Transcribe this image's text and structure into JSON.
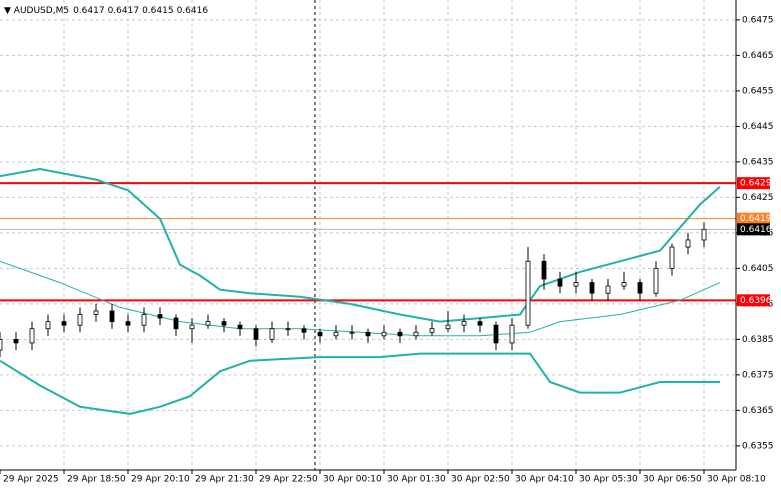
{
  "chart_data": {
    "type": "ohlc",
    "symbol": "AUDUSD,M5",
    "header_ohlc": [
      0.6417,
      0.6417,
      0.6415,
      0.6416
    ],
    "ylim": [
      0.63482,
      0.64806
    ],
    "yticks": [
      0.6355,
      0.6365,
      0.6375,
      0.6385,
      0.6395,
      0.6405,
      0.6415,
      0.6425,
      0.6435,
      0.6445,
      0.6455,
      0.6465,
      0.6475
    ],
    "xlim": [
      0,
      184
    ],
    "xticks": [
      {
        "value": 0,
        "label": "29 Apr 2025"
      },
      {
        "value": 16,
        "label": "29 Apr 18:50"
      },
      {
        "value": 32,
        "label": "29 Apr 20:10"
      },
      {
        "value": 48,
        "label": "29 Apr 21:30"
      },
      {
        "value": 64,
        "label": "29 Apr 22:50"
      },
      {
        "value": 80,
        "label": "30 Apr 00:10"
      },
      {
        "value": 96,
        "label": "30 Apr 01:30"
      },
      {
        "value": 112,
        "label": "30 Apr 02:50"
      },
      {
        "value": 128,
        "label": "30 Apr 04:10"
      },
      {
        "value": 144,
        "label": "30 Apr 05:30"
      },
      {
        "value": 160,
        "label": "30 Apr 06:50"
      },
      {
        "value": 176,
        "label": "30 Apr 08:10"
      }
    ],
    "grid": true,
    "bar_color": "#000000",
    "x": [
      0,
      4,
      8,
      12,
      16,
      20,
      24,
      28,
      32,
      36,
      40,
      44,
      48,
      52,
      56,
      60,
      64,
      68,
      72,
      76,
      80,
      84,
      88,
      92,
      96,
      100,
      104,
      108,
      112,
      116,
      120,
      124,
      128,
      132,
      136,
      140,
      144,
      148,
      152,
      156,
      160,
      164,
      168,
      172,
      176
    ],
    "open": [
      0.6382,
      0.6385,
      0.6384,
      0.6388,
      0.639,
      0.6389,
      0.6392,
      0.6393,
      0.639,
      0.6389,
      0.6392,
      0.6391,
      0.6388,
      0.6389,
      0.639,
      0.6389,
      0.6388,
      0.6385,
      0.6388,
      0.6388,
      0.6387,
      0.6386,
      0.6387,
      0.6387,
      0.6386,
      0.6387,
      0.6386,
      0.6387,
      0.6388,
      0.6389,
      0.639,
      0.6389,
      0.6384,
      0.6389,
      0.6407,
      0.6402,
      0.64,
      0.6401,
      0.6398,
      0.64,
      0.6401,
      0.6398,
      0.6405,
      0.6411,
      0.6413
    ],
    "high": [
      0.6387,
      0.6387,
      0.639,
      0.6392,
      0.6392,
      0.6394,
      0.6395,
      0.6395,
      0.6392,
      0.6394,
      0.6394,
      0.6392,
      0.6391,
      0.6392,
      0.6391,
      0.639,
      0.6389,
      0.639,
      0.639,
      0.6389,
      0.6388,
      0.6389,
      0.6389,
      0.6388,
      0.6389,
      0.6388,
      0.6389,
      0.639,
      0.6393,
      0.6392,
      0.6391,
      0.639,
      0.6391,
      0.6411,
      0.6409,
      0.6404,
      0.6404,
      0.6402,
      0.6402,
      0.6404,
      0.6402,
      0.6407,
      0.6412,
      0.6415,
      0.6418
    ],
    "low": [
      0.638,
      0.6382,
      0.6382,
      0.6386,
      0.6387,
      0.6387,
      0.639,
      0.6388,
      0.6387,
      0.6387,
      0.6389,
      0.6386,
      0.6384,
      0.6388,
      0.6387,
      0.6386,
      0.6383,
      0.6384,
      0.6386,
      0.6385,
      0.6384,
      0.6385,
      0.6385,
      0.6384,
      0.6385,
      0.6384,
      0.6385,
      0.6386,
      0.6387,
      0.6387,
      0.6387,
      0.6382,
      0.6382,
      0.6388,
      0.6399,
      0.6398,
      0.6398,
      0.6396,
      0.6396,
      0.6399,
      0.6396,
      0.6397,
      0.6403,
      0.6409,
      0.6411
    ],
    "close": [
      0.6385,
      0.6384,
      0.6388,
      0.639,
      0.6389,
      0.6392,
      0.6393,
      0.639,
      0.6389,
      0.6392,
      0.6391,
      0.6388,
      0.6389,
      0.639,
      0.6389,
      0.6388,
      0.6385,
      0.6388,
      0.6388,
      0.6387,
      0.6386,
      0.6387,
      0.6387,
      0.6386,
      0.6387,
      0.6386,
      0.6387,
      0.6388,
      0.6389,
      0.639,
      0.6389,
      0.6384,
      0.6389,
      0.6407,
      0.6402,
      0.64,
      0.6401,
      0.6398,
      0.64,
      0.6401,
      0.6398,
      0.6405,
      0.6411,
      0.6413,
      0.6416
    ],
    "bands": [
      {
        "color": "#20b2aa",
        "width": 2,
        "x": [
          0,
          10,
          24,
          32,
          40,
          45,
          50,
          55,
          62.5,
          75,
          87.5,
          100,
          110,
          120,
          130,
          135,
          145,
          155,
          165,
          175,
          180
        ],
        "values": [
          0.6431,
          0.6433,
          0.643,
          0.6427,
          0.6419,
          0.6406,
          0.6403,
          0.6399,
          0.6398,
          0.6397,
          0.6395,
          0.6392,
          0.639,
          0.6391,
          0.6392,
          0.64,
          0.6404,
          0.6407,
          0.641,
          0.6423,
          0.6428
        ]
      },
      {
        "color": "#20b2aa",
        "width": 1,
        "x": [
          0,
          15,
          30,
          45,
          60,
          75,
          90,
          105,
          120,
          132.5,
          140,
          155,
          170,
          180
        ],
        "values": [
          0.6407,
          0.6401,
          0.6394,
          0.639,
          0.6388,
          0.6388,
          0.6387,
          0.6386,
          0.6386,
          0.6387,
          0.639,
          0.6392,
          0.6396,
          0.6401
        ]
      },
      {
        "color": "#20b2aa",
        "width": 2,
        "x": [
          0,
          10,
          20,
          32.5,
          40,
          47.5,
          55,
          62.5,
          80,
          95,
          105,
          120,
          132.5,
          137.5,
          145,
          155,
          165,
          180
        ],
        "values": [
          0.6379,
          0.6372,
          0.6366,
          0.6364,
          0.6366,
          0.6369,
          0.6376,
          0.6379,
          0.638,
          0.638,
          0.6381,
          0.6381,
          0.6381,
          0.6373,
          0.637,
          0.637,
          0.6373,
          0.6373
        ]
      }
    ],
    "levels": [
      {
        "value": 0.6429,
        "color": "#ff0000",
        "width": 2
      },
      {
        "value": 0.6419,
        "color": "#ff7f27",
        "width": 1
      },
      {
        "value": 0.6396,
        "color": "#ff0000",
        "width": 2
      }
    ],
    "current_price": {
      "value": 0.6416,
      "color": "#000000"
    }
  }
}
